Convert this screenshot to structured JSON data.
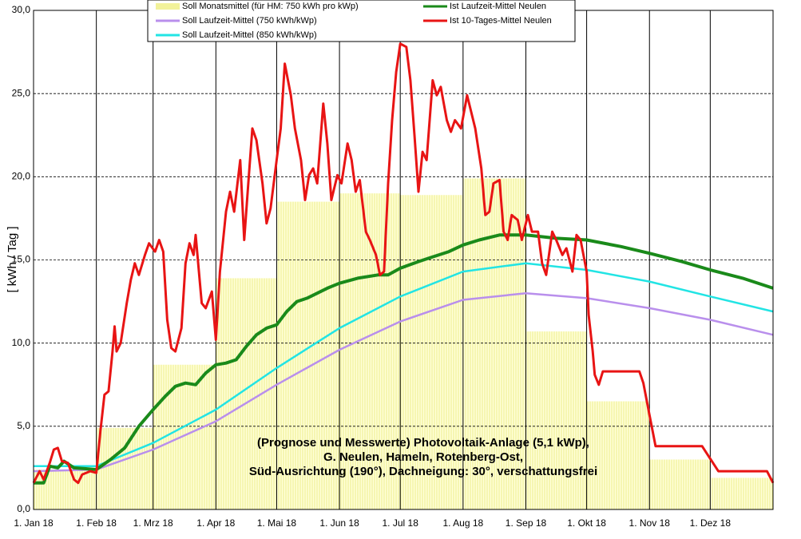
{
  "chart_data": {
    "type": "line",
    "title_lines": [
      "(Prognose und Messwerte)  Photovoltaik-Anlage (5,1 kWp),",
      "G. Neulen, Hameln, Rotenberg-Ost,",
      "Süd-Ausrichtung (190°), Dachneigung: 30°, verschattungsfrei"
    ],
    "y_label": "[ kWh / Tag ]",
    "xlim": [
      0,
      365
    ],
    "ylim": [
      0,
      30
    ],
    "xticks": [
      {
        "value": 0,
        "label": "1. Jan 18"
      },
      {
        "value": 31,
        "label": "1. Feb 18"
      },
      {
        "value": 59,
        "label": "1. Mrz 18"
      },
      {
        "value": 90,
        "label": "1. Apr 18"
      },
      {
        "value": 120,
        "label": "1. Mai 18"
      },
      {
        "value": 151,
        "label": "1. Jun 18"
      },
      {
        "value": 181,
        "label": "1. Jul 18"
      },
      {
        "value": 212,
        "label": "1. Aug 18"
      },
      {
        "value": 243,
        "label": "1. Sep 18"
      },
      {
        "value": 273,
        "label": "1. Okt 18"
      },
      {
        "value": 304,
        "label": "1. Nov 18"
      },
      {
        "value": 334,
        "label": "1. Dez 18"
      }
    ],
    "yticks": [
      {
        "value": 0,
        "label": "0,0"
      },
      {
        "value": 5,
        "label": "5,0"
      },
      {
        "value": 10,
        "label": "10,0"
      },
      {
        "value": 15,
        "label": "15,0"
      },
      {
        "value": 20,
        "label": "20,0"
      },
      {
        "value": 25,
        "label": "25,0"
      },
      {
        "value": 30,
        "label": "30,0"
      }
    ],
    "grid": true,
    "series": [
      {
        "name": "Soll Monatsmittel (für HM: 750 kWh pro kWp)",
        "type": "bar",
        "color": "#f2f29a",
        "bins": [
          0,
          31,
          59,
          90,
          120,
          151,
          181,
          212,
          243,
          273,
          304,
          334,
          365
        ],
        "values": [
          2.4,
          4.9,
          8.7,
          13.9,
          18.5,
          19.0,
          18.9,
          19.9,
          10.7,
          6.5,
          3.0,
          1.9
        ]
      },
      {
        "name": "Soll Laufzeit-Mittel (750 kWh/kWp)",
        "type": "line",
        "color": "#b98fec",
        "x": [
          0,
          31,
          59,
          90,
          120,
          151,
          181,
          212,
          243,
          273,
          304,
          334,
          365
        ],
        "values": [
          2.3,
          2.4,
          3.6,
          5.3,
          7.5,
          9.6,
          11.3,
          12.6,
          13.0,
          12.7,
          12.1,
          11.4,
          10.5
        ]
      },
      {
        "name": "Soll Laufzeit-Mittel (850 kWh/kWp)",
        "type": "line",
        "color": "#22e4e4",
        "x": [
          0,
          31,
          59,
          90,
          120,
          151,
          181,
          212,
          243,
          273,
          304,
          334,
          365
        ],
        "values": [
          2.6,
          2.6,
          4.0,
          6.0,
          8.5,
          10.9,
          12.8,
          14.3,
          14.8,
          14.4,
          13.7,
          12.8,
          11.9
        ]
      },
      {
        "name": "Ist Laufzeit-Mittel Neulen",
        "type": "line",
        "color": "#1a8a1a",
        "x": [
          0,
          5,
          8,
          12,
          15,
          20,
          31,
          38,
          45,
          52,
          59,
          65,
          70,
          75,
          80,
          85,
          90,
          95,
          100,
          105,
          110,
          115,
          120,
          125,
          130,
          135,
          140,
          145,
          151,
          160,
          170,
          175,
          181,
          190,
          195,
          205,
          212,
          220,
          230,
          243,
          258,
          273,
          290,
          304,
          320,
          334,
          350,
          365
        ],
        "values": [
          1.6,
          1.6,
          2.6,
          2.5,
          2.9,
          2.5,
          2.4,
          3.0,
          3.7,
          5.0,
          6.0,
          6.8,
          7.4,
          7.6,
          7.5,
          8.2,
          8.7,
          8.8,
          9.0,
          9.8,
          10.5,
          10.9,
          11.1,
          11.9,
          12.5,
          12.7,
          13.0,
          13.3,
          13.6,
          13.9,
          14.1,
          14.1,
          14.5,
          14.9,
          15.1,
          15.5,
          15.9,
          16.2,
          16.5,
          16.5,
          16.3,
          16.2,
          15.8,
          15.4,
          14.9,
          14.4,
          13.9,
          13.3
        ]
      },
      {
        "name": "Ist 10-Tages-Mittel Neulen",
        "type": "line",
        "color": "#e81414",
        "x": [
          0,
          3,
          5,
          8,
          10,
          12,
          14,
          17,
          20,
          22,
          24,
          28,
          31,
          33,
          35,
          37,
          39,
          40,
          41,
          43,
          46,
          48,
          50,
          52,
          55,
          57,
          60,
          62,
          64,
          66,
          68,
          70,
          73,
          75,
          77,
          79,
          80,
          83,
          85,
          88,
          90,
          92,
          95,
          97,
          99,
          102,
          104,
          106,
          108,
          110,
          113,
          115,
          117,
          120,
          122,
          124,
          127,
          129,
          132,
          134,
          136,
          138,
          140,
          143,
          145,
          147,
          150,
          152,
          155,
          157,
          159,
          161,
          164,
          166,
          169,
          171,
          173,
          175,
          177,
          179,
          181,
          184,
          186,
          188,
          190,
          192,
          194,
          197,
          199,
          201,
          204,
          206,
          208,
          211,
          214,
          216,
          218,
          221,
          223,
          225,
          227,
          230,
          232,
          234,
          236,
          239,
          241,
          244,
          246,
          249,
          251,
          253,
          256,
          258,
          261,
          263,
          266,
          268,
          270,
          273,
          274,
          276,
          277,
          279,
          281,
          299,
          301,
          304,
          307,
          330,
          338,
          362,
          365
        ],
        "values": [
          1.6,
          2.3,
          1.8,
          2.8,
          3.6,
          3.7,
          2.9,
          2.8,
          1.8,
          1.6,
          2.1,
          2.3,
          2.2,
          4.7,
          6.9,
          7.1,
          9.5,
          11.0,
          9.5,
          10.0,
          12.4,
          13.8,
          14.8,
          14.1,
          15.3,
          16.0,
          15.5,
          16.2,
          15.5,
          11.4,
          9.7,
          9.5,
          10.9,
          14.8,
          16.0,
          15.3,
          16.5,
          12.4,
          12.1,
          13.1,
          10.2,
          14.3,
          17.9,
          19.1,
          17.9,
          21.0,
          16.2,
          19.6,
          22.9,
          22.2,
          19.6,
          17.2,
          18.1,
          21.0,
          22.9,
          26.8,
          24.9,
          22.9,
          21.0,
          18.6,
          20.1,
          20.5,
          19.6,
          24.4,
          22.0,
          18.6,
          20.1,
          19.6,
          22.0,
          21.0,
          19.1,
          19.8,
          16.7,
          16.2,
          15.3,
          14.1,
          14.3,
          19.6,
          23.4,
          26.3,
          28.0,
          27.8,
          25.8,
          22.5,
          19.1,
          21.5,
          21.0,
          25.8,
          24.9,
          25.4,
          23.4,
          22.7,
          23.4,
          22.9,
          24.9,
          23.9,
          22.9,
          20.5,
          17.7,
          17.9,
          19.6,
          19.8,
          16.7,
          16.2,
          17.7,
          17.4,
          16.2,
          17.7,
          16.7,
          16.7,
          14.8,
          14.1,
          16.7,
          16.2,
          15.3,
          15.7,
          14.3,
          16.5,
          16.2,
          14.3,
          11.7,
          9.5,
          8.1,
          7.5,
          8.3,
          8.3,
          7.6,
          5.7,
          3.8,
          3.8,
          2.3,
          2.3,
          1.6
        ]
      }
    ]
  }
}
